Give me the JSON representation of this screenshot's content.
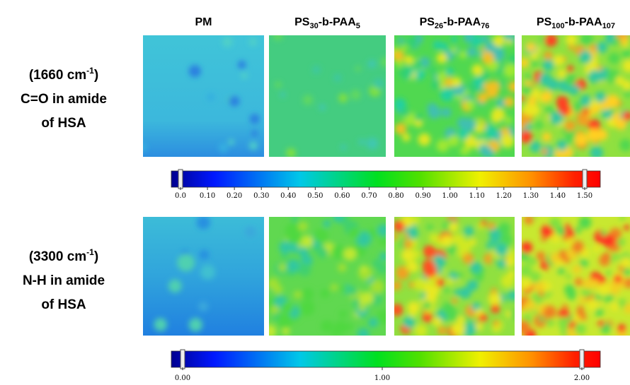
{
  "columns": [
    [
      "PM"
    ],
    [
      "PS",
      "30",
      "-b-PAA",
      "5"
    ],
    [
      "PS",
      "26",
      "-b-PAA",
      "76"
    ],
    [
      "PS",
      "100",
      "-b-PAA",
      "107"
    ]
  ],
  "rows": [
    [
      [
        "(1660 cm",
        "-1",
        ")"
      ],
      [
        "C=O in amide"
      ],
      [
        "of HSA"
      ]
    ],
    [
      [
        "(3300 cm",
        "-1",
        ")"
      ],
      [
        "N-H in amide"
      ],
      [
        "of HSA"
      ]
    ]
  ],
  "colorbars": [
    {
      "ticks": [
        {
          "value": 0,
          "label": "0.0"
        },
        {
          "value": 0.1,
          "label": "0.10"
        },
        {
          "value": 0.2,
          "label": "0.20"
        },
        {
          "value": 0.3,
          "label": "0.30"
        },
        {
          "value": 0.4,
          "label": "0.40"
        },
        {
          "value": 0.5,
          "label": "0.50"
        },
        {
          "value": 0.6,
          "label": "0.60"
        },
        {
          "value": 0.7,
          "label": "0.70"
        },
        {
          "value": 0.8,
          "label": "0.80"
        },
        {
          "value": 0.9,
          "label": "0.90"
        },
        {
          "value": 1,
          "label": "1.00"
        },
        {
          "value": 1.1,
          "label": "1.10"
        },
        {
          "value": 1.2,
          "label": "1.20"
        },
        {
          "value": 1.3,
          "label": "1.30"
        },
        {
          "value": 1.4,
          "label": "1.40"
        },
        {
          "value": 1.5,
          "label": "1.50"
        }
      ]
    },
    {
      "ticks": [
        {
          "value": 0,
          "label": "0.00"
        },
        {
          "value": 1,
          "label": "1.00"
        },
        {
          "value": 2,
          "label": "2.00"
        }
      ]
    }
  ]
}
